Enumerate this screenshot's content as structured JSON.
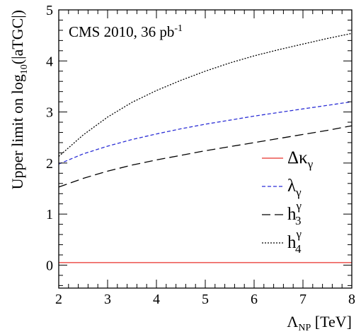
{
  "chart_data": {
    "type": "line",
    "annotation": "CMS 2010, 36 pb",
    "annotation_sup": "-1",
    "ylabel": {
      "prefix": "Upper limit on log",
      "sub": "10",
      "suffix": "(|aTGC|)"
    },
    "xlabel": {
      "main": "Λ",
      "sub": "NP",
      "suffix": " [TeV]"
    },
    "xlim": [
      2,
      8
    ],
    "ylim": [
      -0.45,
      5
    ],
    "xticks": [
      2,
      3,
      4,
      5,
      6,
      7,
      8
    ],
    "yticks": [
      0,
      1,
      2,
      3,
      4,
      5
    ],
    "legend_placement": "right",
    "x": [
      2,
      2.5,
      3,
      3.5,
      4,
      4.5,
      5,
      5.5,
      6,
      6.5,
      7,
      7.5,
      8
    ],
    "series": [
      {
        "key": "dkg",
        "name_main": "Δκ",
        "name_sub": "γ",
        "name_sup": "",
        "color": "#e8302a",
        "dash": "",
        "values": [
          0.05,
          0.05,
          0.05,
          0.05,
          0.05,
          0.05,
          0.05,
          0.05,
          0.05,
          0.05,
          0.05,
          0.05,
          0.05
        ]
      },
      {
        "key": "lg",
        "name_main": "λ",
        "name_sub": "γ",
        "name_sup": "",
        "color": "#2c2fd6",
        "dash": "5,3",
        "values": [
          1.98,
          2.18,
          2.33,
          2.46,
          2.57,
          2.67,
          2.76,
          2.84,
          2.92,
          2.99,
          3.06,
          3.13,
          3.2
        ]
      },
      {
        "key": "h3",
        "name_main": "h",
        "name_sub": "3",
        "name_sup": "γ",
        "color": "#000000",
        "dash": "12,6",
        "values": [
          1.53,
          1.7,
          1.84,
          1.96,
          2.06,
          2.15,
          2.24,
          2.32,
          2.4,
          2.48,
          2.56,
          2.64,
          2.73
        ]
      },
      {
        "key": "h4",
        "name_main": "h",
        "name_sub": "4",
        "name_sup": "γ",
        "color": "#000000",
        "dash": "2,2",
        "values": [
          2.13,
          2.55,
          2.9,
          3.19,
          3.42,
          3.62,
          3.8,
          3.96,
          4.1,
          4.22,
          4.33,
          4.44,
          4.54
        ]
      }
    ]
  }
}
